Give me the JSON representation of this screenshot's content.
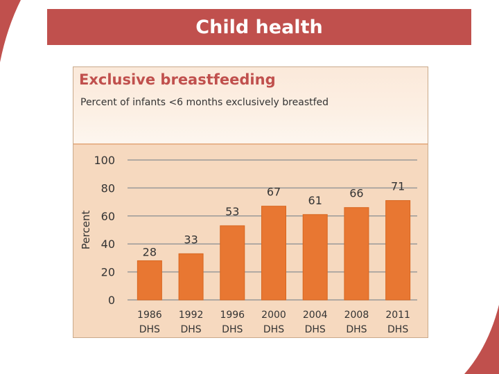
{
  "slide": {
    "title": "Child health"
  },
  "chart_data": {
    "type": "bar",
    "title": "Exclusive breastfeeding",
    "subtitle": "Percent of infants <6 months exclusively breastfed",
    "xlabel": "",
    "ylabel": "Percent",
    "ylim": [
      0,
      100
    ],
    "yticks": [
      0,
      20,
      40,
      60,
      80,
      100
    ],
    "grid": true,
    "categories": [
      {
        "year": "1986",
        "survey": "DHS"
      },
      {
        "year": "1992",
        "survey": "DHS"
      },
      {
        "year": "1996",
        "survey": "DHS"
      },
      {
        "year": "2000",
        "survey": "DHS"
      },
      {
        "year": "2004",
        "survey": "DHS"
      },
      {
        "year": "2008",
        "survey": "DHS"
      },
      {
        "year": "2011",
        "survey": "DHS"
      }
    ],
    "values": [
      28,
      33,
      53,
      67,
      61,
      66,
      71
    ]
  },
  "colors": {
    "bar": "#e87732",
    "bar_border": "#d8661f",
    "grid": "#999999",
    "axis_text": "#333333",
    "label_text": "#333333"
  }
}
